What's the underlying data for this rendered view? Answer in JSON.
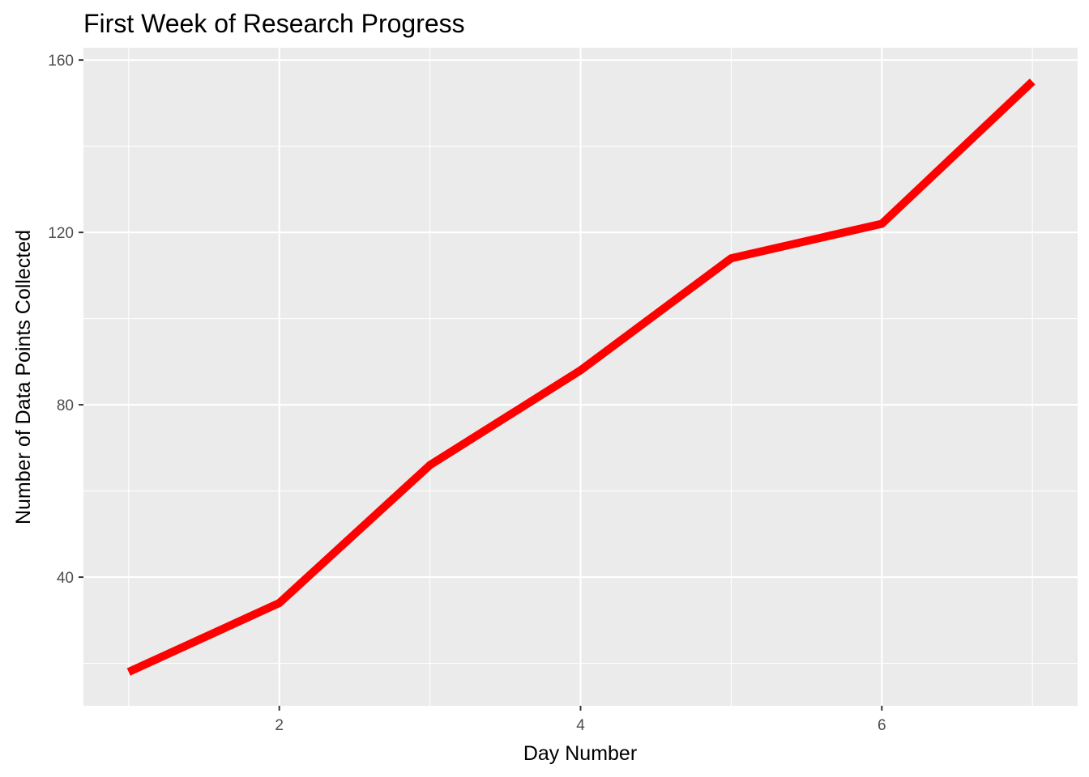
{
  "chart_data": {
    "type": "line",
    "title": "First Week of Research Progress",
    "xlabel": "Day Number",
    "ylabel": "Number of Data Points Collected",
    "x": [
      1,
      2,
      3,
      4,
      5,
      6,
      7
    ],
    "series": [
      {
        "values": [
          18,
          34,
          66,
          88,
          114,
          122,
          155
        ],
        "color": "#ff0000"
      }
    ],
    "xlim": [
      0.7,
      7.3
    ],
    "ylim": [
      10.15,
      162.85
    ],
    "x_major_ticks": [
      2,
      4,
      6
    ],
    "x_minor_ticks": [
      1,
      3,
      5,
      7
    ],
    "y_major_ticks": [
      40,
      80,
      120,
      160
    ],
    "y_minor_ticks": [
      20,
      60,
      100,
      140
    ],
    "x_tick_labels": [
      "2",
      "4",
      "6"
    ],
    "y_tick_labels": [
      "40",
      "80",
      "120",
      "160"
    ],
    "grid": true,
    "legend": "none",
    "panel_color": "#ebebeb",
    "grid_color": "#ffffff",
    "tick_color": "#333333"
  }
}
